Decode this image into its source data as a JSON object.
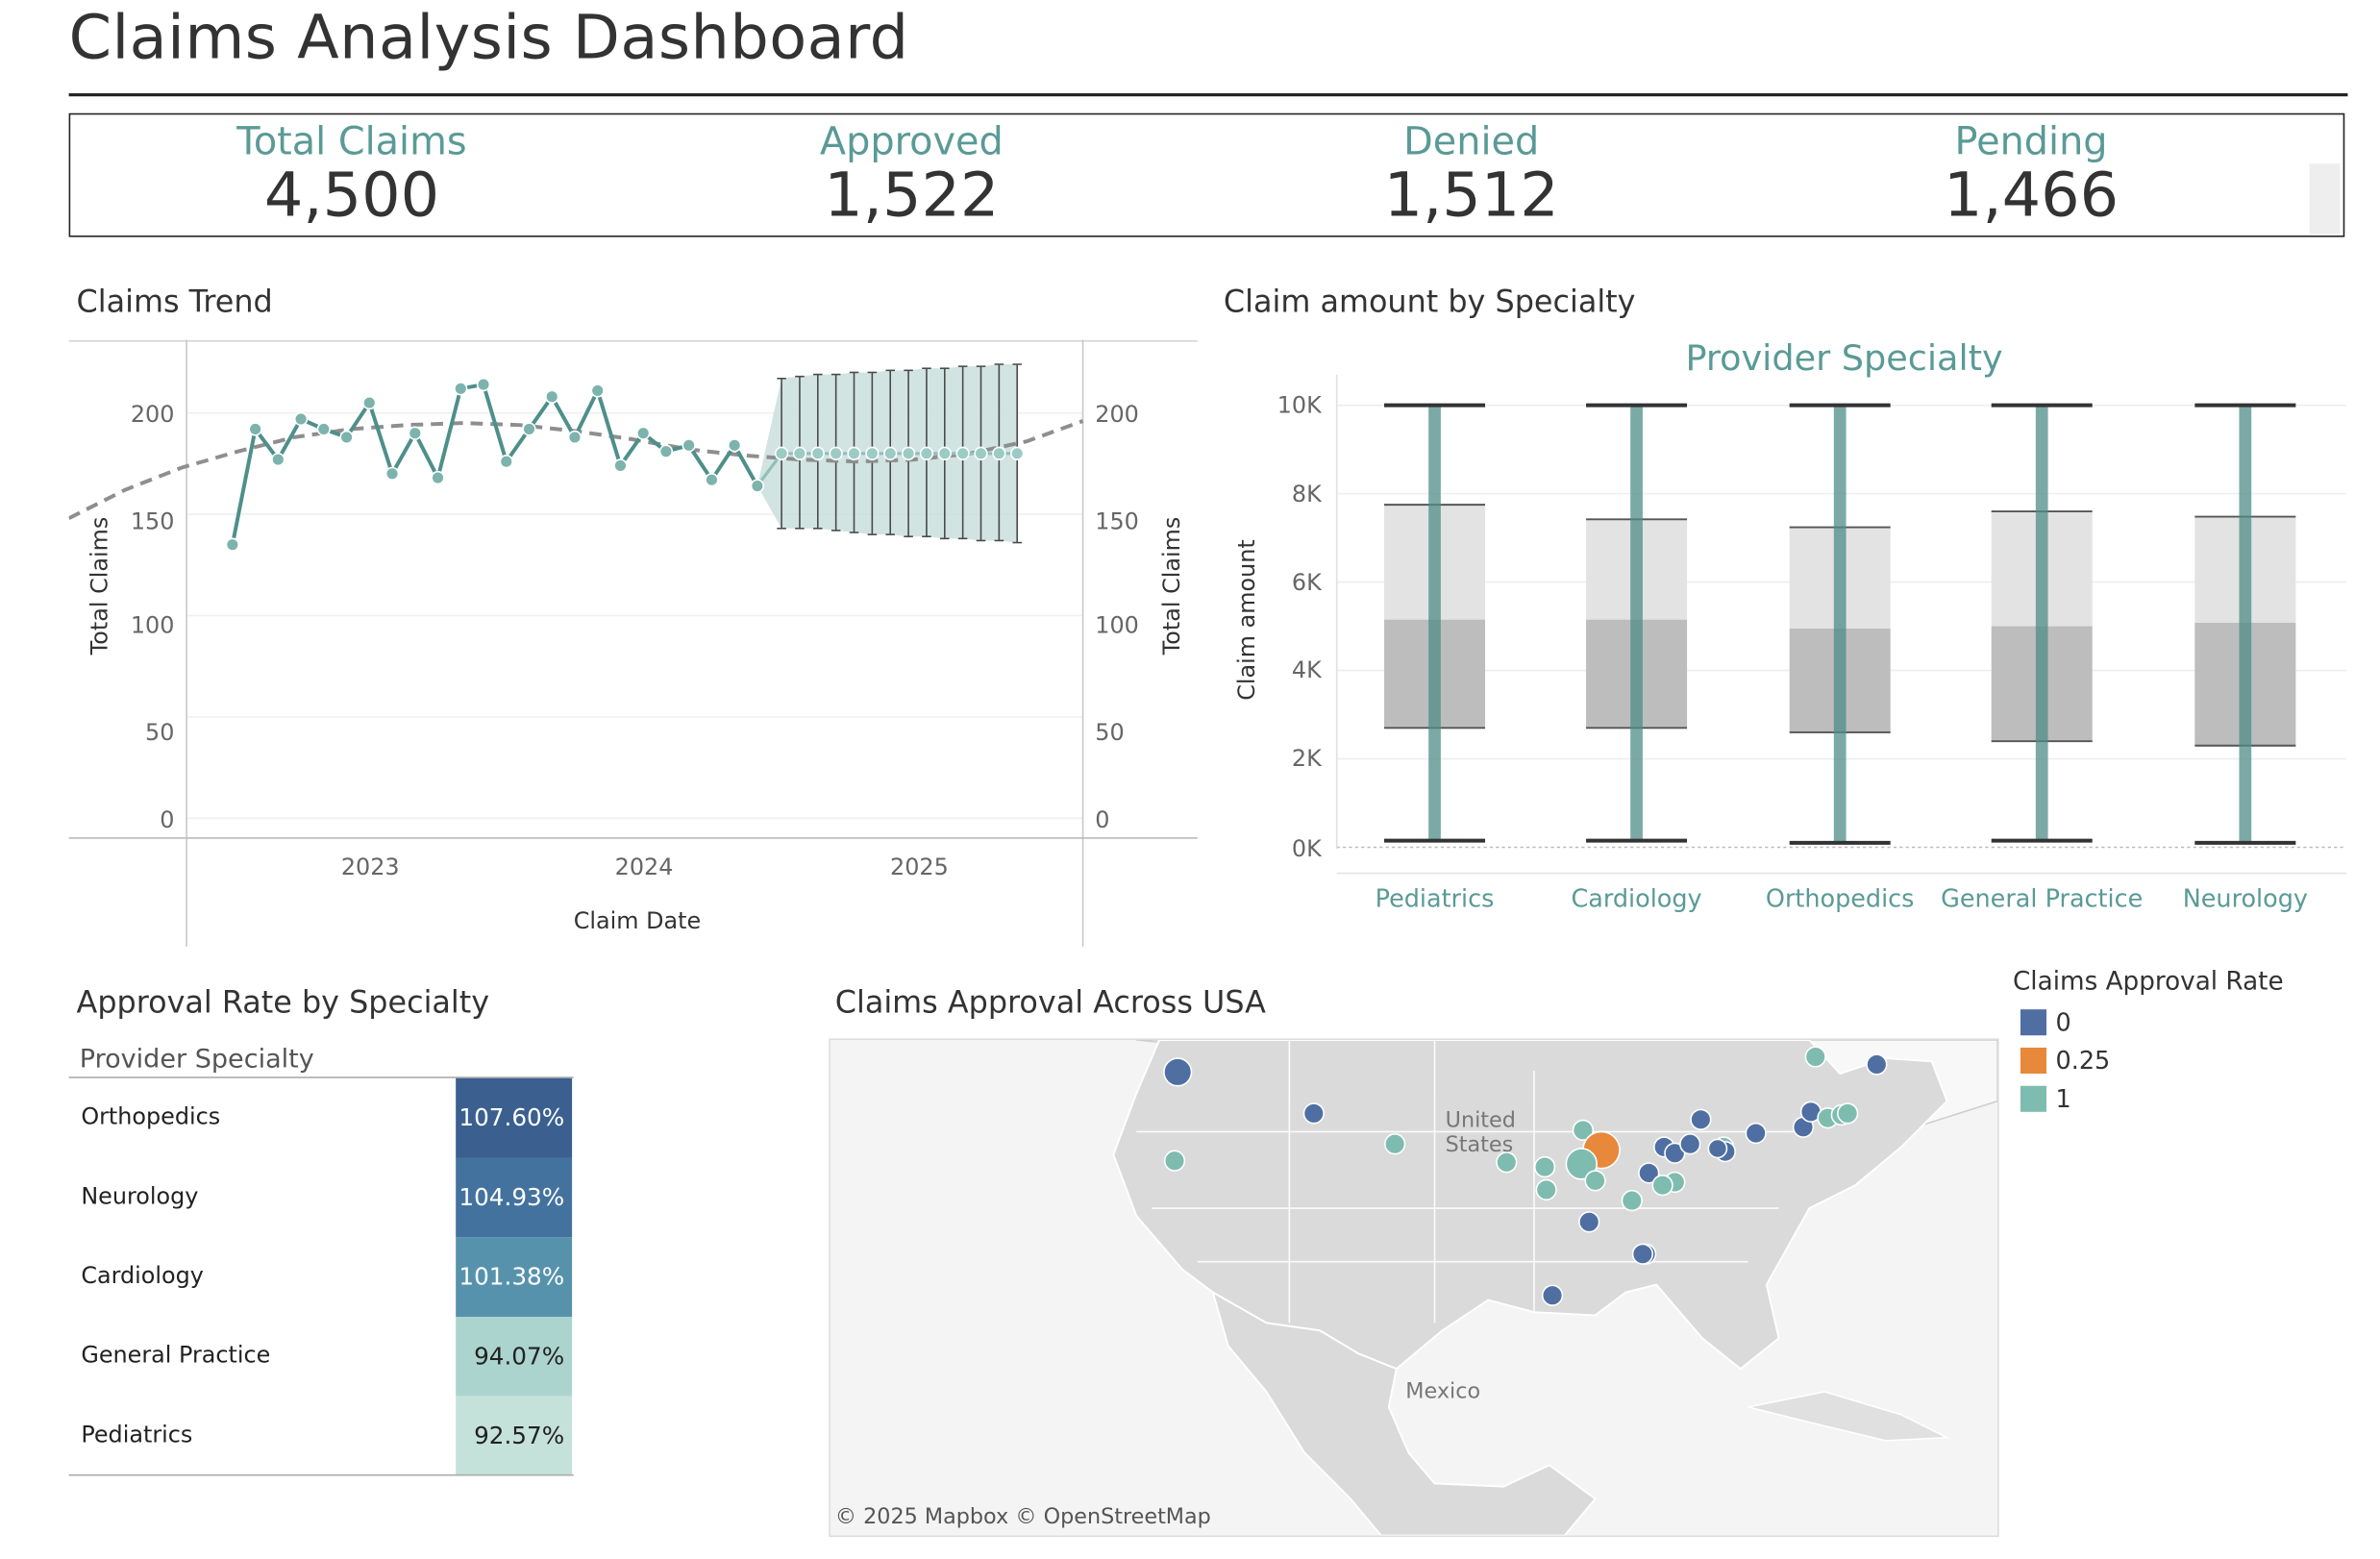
{
  "dashboard": {
    "title": "Claims Analysis Dashboard"
  },
  "kpis": [
    {
      "label": "Total Claims",
      "value": "4,500"
    },
    {
      "label": "Approved",
      "value": "1,522"
    },
    {
      "label": "Denied",
      "value": "1,512"
    },
    {
      "label": "Pending",
      "value": "1,466"
    }
  ],
  "colors": {
    "teal": "#5a9a96",
    "teal_light": "#8fc0b9",
    "dark_blue": "#375a8a",
    "map_blue": "#4f6fa3",
    "map_orange": "#e8883a",
    "map_teal": "#7fbcb0",
    "box_light": "#e3e3e3",
    "box_dark": "#bdbdbd"
  },
  "trend": {
    "title": "Claims Trend",
    "y_ticks": [
      "200",
      "150",
      "100",
      "50",
      "0"
    ],
    "y_title": "Total Claims",
    "x_ticks": [
      "2023",
      "2024",
      "2025"
    ],
    "x_title": "Claim Date"
  },
  "box": {
    "title": "Claim amount by Specialty",
    "header": "Provider Specialty",
    "y_ticks": [
      "10K",
      "8K",
      "6K",
      "4K",
      "2K",
      "0K"
    ],
    "y_title": "Claim amount",
    "categories": [
      "Pediatrics",
      "Cardiology",
      "Orthopedics",
      "General Practice",
      "Neurology"
    ]
  },
  "approval_table": {
    "title": "Approval Rate by Specialty",
    "column_header": "Provider Specialty",
    "rows": [
      {
        "name": "Orthopedics",
        "value": "107.60%",
        "color": "#3b5f8e",
        "text": "#ffffff"
      },
      {
        "name": "Neurology",
        "value": "104.93%",
        "color": "#44729e",
        "text": "#ffffff"
      },
      {
        "name": "Cardiology",
        "value": "101.38%",
        "color": "#5792ac",
        "text": "#ffffff"
      },
      {
        "name": "General Practice",
        "value": "94.07%",
        "color": "#acd4cf",
        "text": "#222222"
      },
      {
        "name": "Pediatrics",
        "value": "92.57%",
        "color": "#c5e2da",
        "text": "#222222"
      }
    ]
  },
  "map": {
    "title": "Claims Approval Across USA",
    "label_us": "United States",
    "label_mexico": "Mexico",
    "credit": "© 2025 Mapbox  © OpenStreetMap"
  },
  "legend": {
    "title": "Claims Approval Rate",
    "items": [
      {
        "label": "0",
        "color": "#4f6fa3"
      },
      {
        "label": "0.25",
        "color": "#e8883a"
      },
      {
        "label": "1",
        "color": "#7fbcb0"
      }
    ]
  },
  "chart_data": [
    {
      "type": "line",
      "title": "Claims Trend",
      "xlabel": "Claim Date",
      "ylabel": "Total Claims",
      "ylim": [
        0,
        225
      ],
      "x_ticks": [
        "2023",
        "2024",
        "2025"
      ],
      "grid": true,
      "series": [
        {
          "values": [
            135,
            192,
            177,
            197,
            192,
            188,
            205,
            170,
            190,
            168,
            212,
            214,
            176,
            192,
            208,
            188,
            211,
            174,
            190,
            181,
            184,
            167,
            184,
            164
          ]
        },
        {
          "values": [
            180,
            180,
            180,
            180,
            180,
            180,
            180,
            180,
            180,
            180,
            180,
            180,
            180,
            180
          ]
        }
      ],
      "forecast_intervals": [
        [
          143,
          217
        ],
        [
          143,
          218
        ],
        [
          143,
          219
        ],
        [
          142,
          219
        ],
        [
          141,
          220
        ],
        [
          140,
          220
        ],
        [
          140,
          221
        ],
        [
          139,
          221
        ],
        [
          139,
          222
        ],
        [
          138,
          222
        ],
        [
          138,
          223
        ],
        [
          137,
          223
        ],
        [
          137,
          224
        ],
        [
          136,
          224
        ]
      ],
      "trend_line": [
        148,
        162,
        173,
        181,
        188,
        192,
        194,
        195,
        194,
        191,
        187,
        182,
        179,
        177,
        176,
        177,
        180,
        186,
        196
      ]
    },
    {
      "type": "box",
      "title": "Claim amount by Specialty",
      "xlabel": "Provider Specialty",
      "ylabel": "Claim amount",
      "ylim": [
        0,
        10000
      ],
      "categories": [
        "Pediatrics",
        "Cardiology",
        "Orthopedics",
        "General Practice",
        "Neurology"
      ],
      "whisker_low": [
        150,
        150,
        100,
        150,
        100
      ],
      "q1": [
        2700,
        2700,
        2600,
        2400,
        2300
      ],
      "median": [
        5150,
        5150,
        4950,
        5000,
        5080
      ],
      "q3": [
        7750,
        7420,
        7240,
        7600,
        7480
      ],
      "whisker_high": [
        10000,
        10000,
        10000,
        10000,
        10000
      ]
    }
  ]
}
